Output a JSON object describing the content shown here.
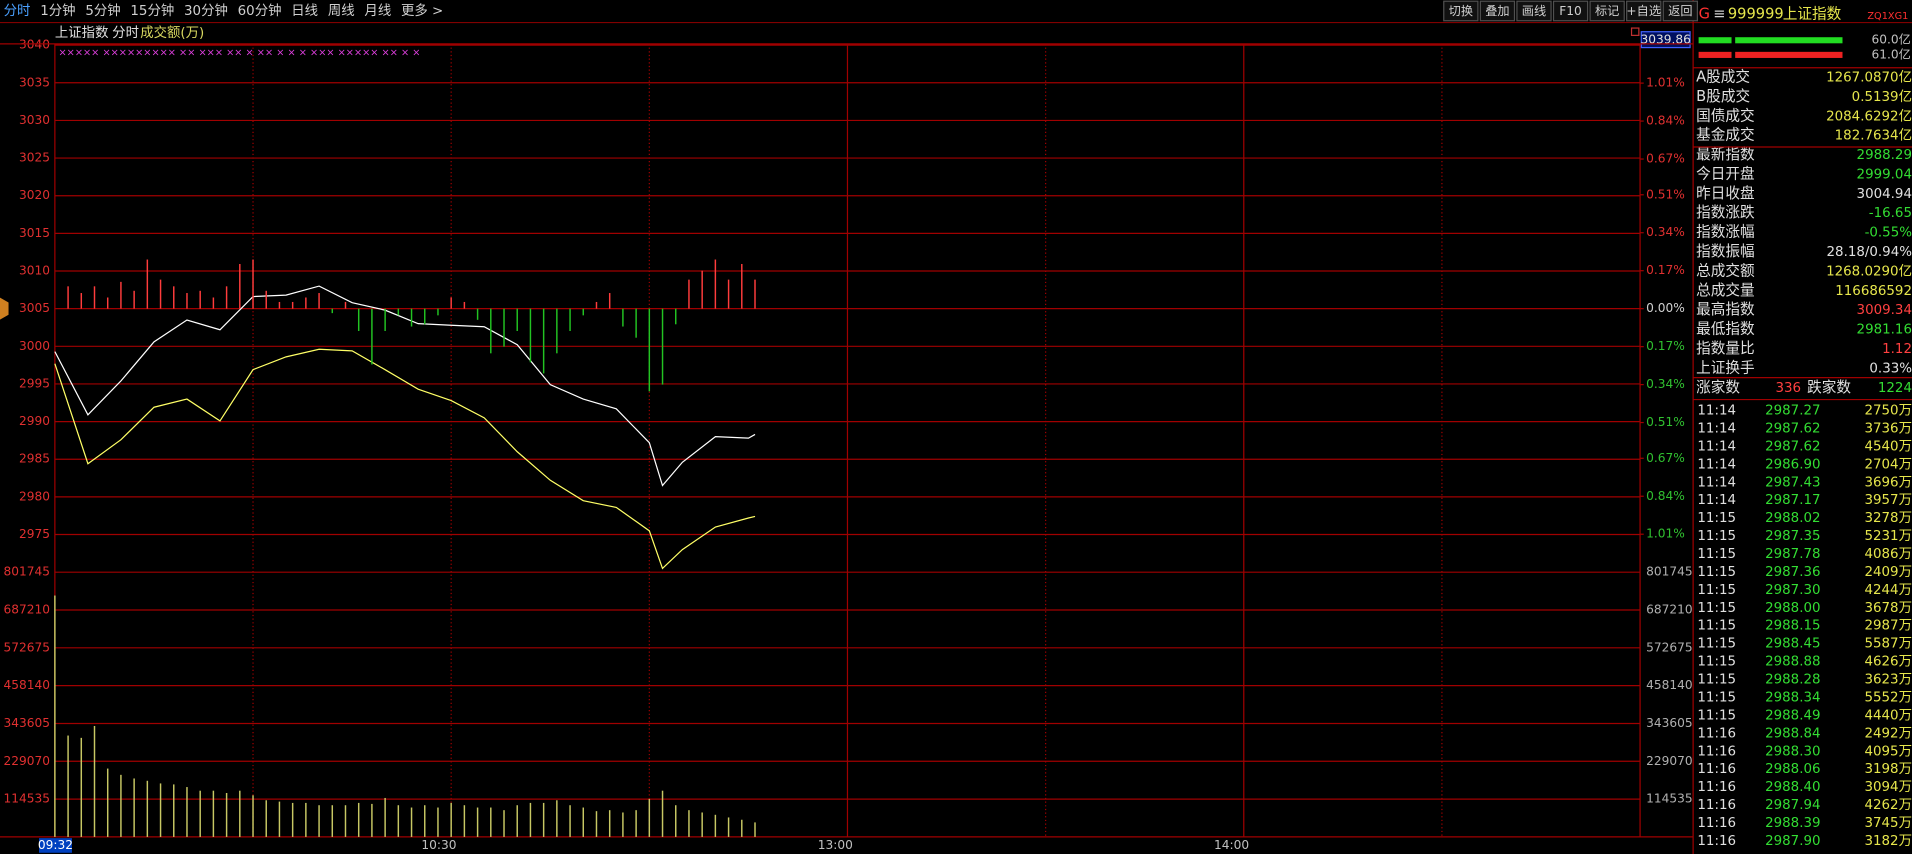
{
  "toolbar": {
    "tabs": [
      "分时",
      "1分钟",
      "5分钟",
      "15分钟",
      "30分钟",
      "60分钟",
      "日线",
      "周线",
      "月线",
      "更多 >"
    ],
    "active": 0,
    "buttons": [
      "切换",
      "叠加",
      "画线",
      "F10",
      "标记",
      "+自选",
      "返回"
    ]
  },
  "price_chart": {
    "type": "line",
    "title": "上证指数",
    "mode": "分时",
    "indicator": "成交额(万)",
    "cursor_value": "3039.86",
    "signal_marks": "×××××  ×××××××××  ××  ×××   ××  ×   ××   ×    ×   ×   ×××  ×××××   ××                      ×   ×",
    "xlim": [
      0,
      240
    ],
    "ylim": [
      2970,
      3040
    ],
    "yticks": [
      3040,
      3035,
      3030,
      3025,
      3020,
      3015,
      3010,
      3005,
      3000,
      2995,
      2990,
      2985,
      2980,
      2975
    ],
    "y2lim": [
      -1.18,
      1.18
    ],
    "y2ticks": [
      {
        "value": 1.01,
        "label": "1.01%"
      },
      {
        "value": 0.84,
        "label": "0.84%"
      },
      {
        "value": 0.67,
        "label": "0.67%"
      },
      {
        "value": 0.51,
        "label": "0.51%"
      },
      {
        "value": 0.34,
        "label": "0.34%"
      },
      {
        "value": 0.17,
        "label": "0.17%"
      },
      {
        "value": 0,
        "label": "0.00%"
      },
      {
        "value": -0.17,
        "label": "0.17%"
      },
      {
        "value": -0.34,
        "label": "0.34%"
      },
      {
        "value": -0.51,
        "label": "0.51%"
      },
      {
        "value": -0.67,
        "label": "0.67%"
      },
      {
        "value": -0.84,
        "label": "0.84%"
      },
      {
        "value": -1.01,
        "label": "1.01%"
      }
    ],
    "grid": true,
    "series": [
      {
        "type": "line",
        "color": "#ffffff",
        "x": [
          0,
          5,
          10,
          15,
          20,
          25,
          30,
          35,
          40,
          45,
          50,
          55,
          60,
          65,
          70,
          75,
          80,
          85,
          90,
          92,
          95,
          100,
          105,
          106
        ],
        "values": [
          2999.3,
          2990.9,
          2995.4,
          3000.6,
          3003.5,
          3002.2,
          3006.6,
          3006.8,
          3008.0,
          3005.8,
          3004.8,
          3003.0,
          3002.8,
          3002.6,
          3000.2,
          2994.9,
          2993.0,
          2991.7,
          2987.2,
          2981.5,
          2984.6,
          2988.0,
          2987.8,
          2988.3
        ]
      },
      {
        "type": "line",
        "color": "#ffff66",
        "x": [
          0,
          5,
          10,
          15,
          20,
          25,
          30,
          35,
          40,
          45,
          50,
          55,
          60,
          65,
          70,
          75,
          80,
          85,
          90,
          92,
          95,
          100,
          105,
          106
        ],
        "values": [
          2997.7,
          2984.4,
          2987.6,
          2991.9,
          2993.0,
          2990.1,
          2996.9,
          2998.6,
          2999.6,
          2999.4,
          2996.9,
          2994.3,
          2992.8,
          2990.5,
          2986.0,
          2982.2,
          2979.5,
          2978.6,
          2975.5,
          2970.5,
          2973.0,
          2976.0,
          2977.2,
          2977.4
        ]
      },
      {
        "type": "bar",
        "axis": "y2",
        "up_color": "#ff3c3c",
        "down_color": "#22c322",
        "x": [
          0,
          2,
          4,
          6,
          8,
          10,
          12,
          14,
          16,
          18,
          20,
          22,
          24,
          26,
          28,
          30,
          32,
          34,
          36,
          38,
          40,
          42,
          44,
          46,
          48,
          50,
          52,
          54,
          56,
          58,
          60,
          62,
          64,
          66,
          68,
          70,
          72,
          74,
          76,
          78,
          80,
          82,
          84,
          86,
          88,
          90,
          92,
          94,
          96,
          98,
          100,
          102,
          104,
          106
        ],
        "values": [
          0,
          0.1,
          0.07,
          0.1,
          0.05,
          0.12,
          0.08,
          0.22,
          0.13,
          0.1,
          0.07,
          0.08,
          0.05,
          0.1,
          0.2,
          0.22,
          0.08,
          0.03,
          0.03,
          0.05,
          0.07,
          -0.02,
          0.03,
          -0.1,
          -0.25,
          -0.1,
          -0.03,
          -0.08,
          -0.07,
          -0.03,
          0.05,
          0.03,
          -0.05,
          -0.2,
          -0.17,
          -0.1,
          -0.24,
          -0.29,
          -0.2,
          -0.1,
          -0.03,
          0.03,
          0.07,
          -0.08,
          -0.13,
          -0.37,
          -0.34,
          -0.07,
          0.13,
          0.17,
          0.22,
          0.13,
          0.2,
          0.13
        ]
      }
    ]
  },
  "volume_chart": {
    "type": "bar",
    "color": "#c8c864",
    "xlim": [
      0,
      240
    ],
    "xticks": [
      {
        "value": 60,
        "label": "10:30"
      },
      {
        "value": 120,
        "label": "13:00"
      },
      {
        "value": 180,
        "label": "14:00"
      }
    ],
    "cursor_label": "09:32",
    "ylim": [
      0,
      801745
    ],
    "yticks": [
      801745,
      687210,
      572675,
      458140,
      343605,
      229070,
      114535
    ],
    "grid": true,
    "x": [
      0,
      2,
      4,
      6,
      8,
      10,
      12,
      14,
      16,
      18,
      20,
      22,
      24,
      26,
      28,
      30,
      32,
      34,
      36,
      38,
      40,
      42,
      44,
      46,
      48,
      50,
      52,
      54,
      56,
      58,
      60,
      62,
      64,
      66,
      68,
      70,
      72,
      74,
      76,
      78,
      80,
      82,
      84,
      86,
      88,
      90,
      92,
      94,
      96,
      98,
      100,
      102,
      104,
      106
    ],
    "values": [
      731000,
      307000,
      300000,
      336000,
      207000,
      188000,
      177000,
      170000,
      162000,
      159000,
      151000,
      140000,
      140000,
      133000,
      140000,
      126000,
      111000,
      107000,
      103000,
      103000,
      96000,
      96000,
      96000,
      103000,
      100000,
      118000,
      96000,
      89000,
      96000,
      89000,
      103000,
      96000,
      89000,
      89000,
      81000,
      96000,
      103000,
      103000,
      111000,
      96000,
      89000,
      78000,
      81000,
      74000,
      81000,
      115000,
      140000,
      96000,
      81000,
      74000,
      67000,
      59000,
      52000,
      44000
    ]
  },
  "side_panel": {
    "header": {
      "prefix": "G",
      "menu": "≡",
      "code": "999999",
      "name": "上证指数",
      "tag": "ZQ1XG1"
    },
    "meters": [
      {
        "label": "60.0亿",
        "color": "#22dd22"
      },
      {
        "label": "61.0亿",
        "color": "#ee2222"
      }
    ],
    "stats": [
      {
        "label": "A股成交",
        "value": "1267.0870亿",
        "color": "#e6e64c"
      },
      {
        "label": "B股成交",
        "value": "0.5139亿",
        "color": "#e6e64c"
      },
      {
        "label": "国债成交",
        "value": "2084.6292亿",
        "color": "#e6e64c"
      },
      {
        "label": "基金成交",
        "value": "182.7634亿",
        "color": "#e6e64c"
      },
      {
        "label": "最新指数",
        "value": "2988.29",
        "color": "#33dd33"
      },
      {
        "label": "今日开盘",
        "value": "2999.04",
        "color": "#33dd33"
      },
      {
        "label": "昨日收盘",
        "value": "3004.94",
        "color": "#e0e0e0"
      },
      {
        "label": "指数涨跌",
        "value": "-16.65",
        "color": "#33dd33"
      },
      {
        "label": "指数涨幅",
        "value": "-0.55%",
        "color": "#33dd33"
      },
      {
        "label": "指数振幅",
        "value": "28.18/0.94%",
        "color": "#e0e0e0"
      },
      {
        "label": "总成交额",
        "value": "1268.0290亿",
        "color": "#e6e64c"
      },
      {
        "label": "总成交量",
        "value": "116686592",
        "color": "#e6e64c"
      },
      {
        "label": "最高指数",
        "value": "3009.34",
        "color": "#ff4040"
      },
      {
        "label": "最低指数",
        "value": "2981.16",
        "color": "#33dd33"
      },
      {
        "label": "指数量比",
        "value": "1.12",
        "color": "#ff4040"
      },
      {
        "label": "上证换手",
        "value": "0.33%",
        "color": "#e0e0e0"
      }
    ],
    "breadth": {
      "up_label": "涨家数",
      "up": "336",
      "down_label": "跌家数",
      "down": "1224"
    },
    "tick_colors": {
      "time": "#e0e0e0",
      "price": "#33dd33",
      "volume": "#e6e64c"
    },
    "ticks": [
      {
        "time": "11:14",
        "price": "2987.27",
        "volume": "2750万"
      },
      {
        "time": "11:14",
        "price": "2987.62",
        "volume": "3736万"
      },
      {
        "time": "11:14",
        "price": "2987.62",
        "volume": "4540万"
      },
      {
        "time": "11:14",
        "price": "2986.90",
        "volume": "2704万"
      },
      {
        "time": "11:14",
        "price": "2987.43",
        "volume": "3696万"
      },
      {
        "time": "11:14",
        "price": "2987.17",
        "volume": "3957万"
      },
      {
        "time": "11:15",
        "price": "2988.02",
        "volume": "3278万"
      },
      {
        "time": "11:15",
        "price": "2987.35",
        "volume": "5231万"
      },
      {
        "time": "11:15",
        "price": "2987.78",
        "volume": "4086万"
      },
      {
        "time": "11:15",
        "price": "2987.36",
        "volume": "2409万"
      },
      {
        "time": "11:15",
        "price": "2987.30",
        "volume": "4244万"
      },
      {
        "time": "11:15",
        "price": "2988.00",
        "volume": "3678万"
      },
      {
        "time": "11:15",
        "price": "2988.15",
        "volume": "2987万"
      },
      {
        "time": "11:15",
        "price": "2988.45",
        "volume": "5587万"
      },
      {
        "time": "11:15",
        "price": "2988.88",
        "volume": "4626万"
      },
      {
        "time": "11:15",
        "price": "2988.28",
        "volume": "3623万"
      },
      {
        "time": "11:15",
        "price": "2988.34",
        "volume": "5552万"
      },
      {
        "time": "11:15",
        "price": "2988.49",
        "volume": "4440万"
      },
      {
        "time": "11:16",
        "price": "2988.84",
        "volume": "2492万"
      },
      {
        "time": "11:16",
        "price": "2988.30",
        "volume": "4095万"
      },
      {
        "time": "11:16",
        "price": "2988.06",
        "volume": "3198万"
      },
      {
        "time": "11:16",
        "price": "2988.40",
        "volume": "3094万"
      },
      {
        "time": "11:16",
        "price": "2987.94",
        "volume": "4262万"
      },
      {
        "time": "11:16",
        "price": "2988.39",
        "volume": "3745万"
      },
      {
        "time": "11:16",
        "price": "2987.90",
        "volume": "3182万"
      }
    ]
  }
}
